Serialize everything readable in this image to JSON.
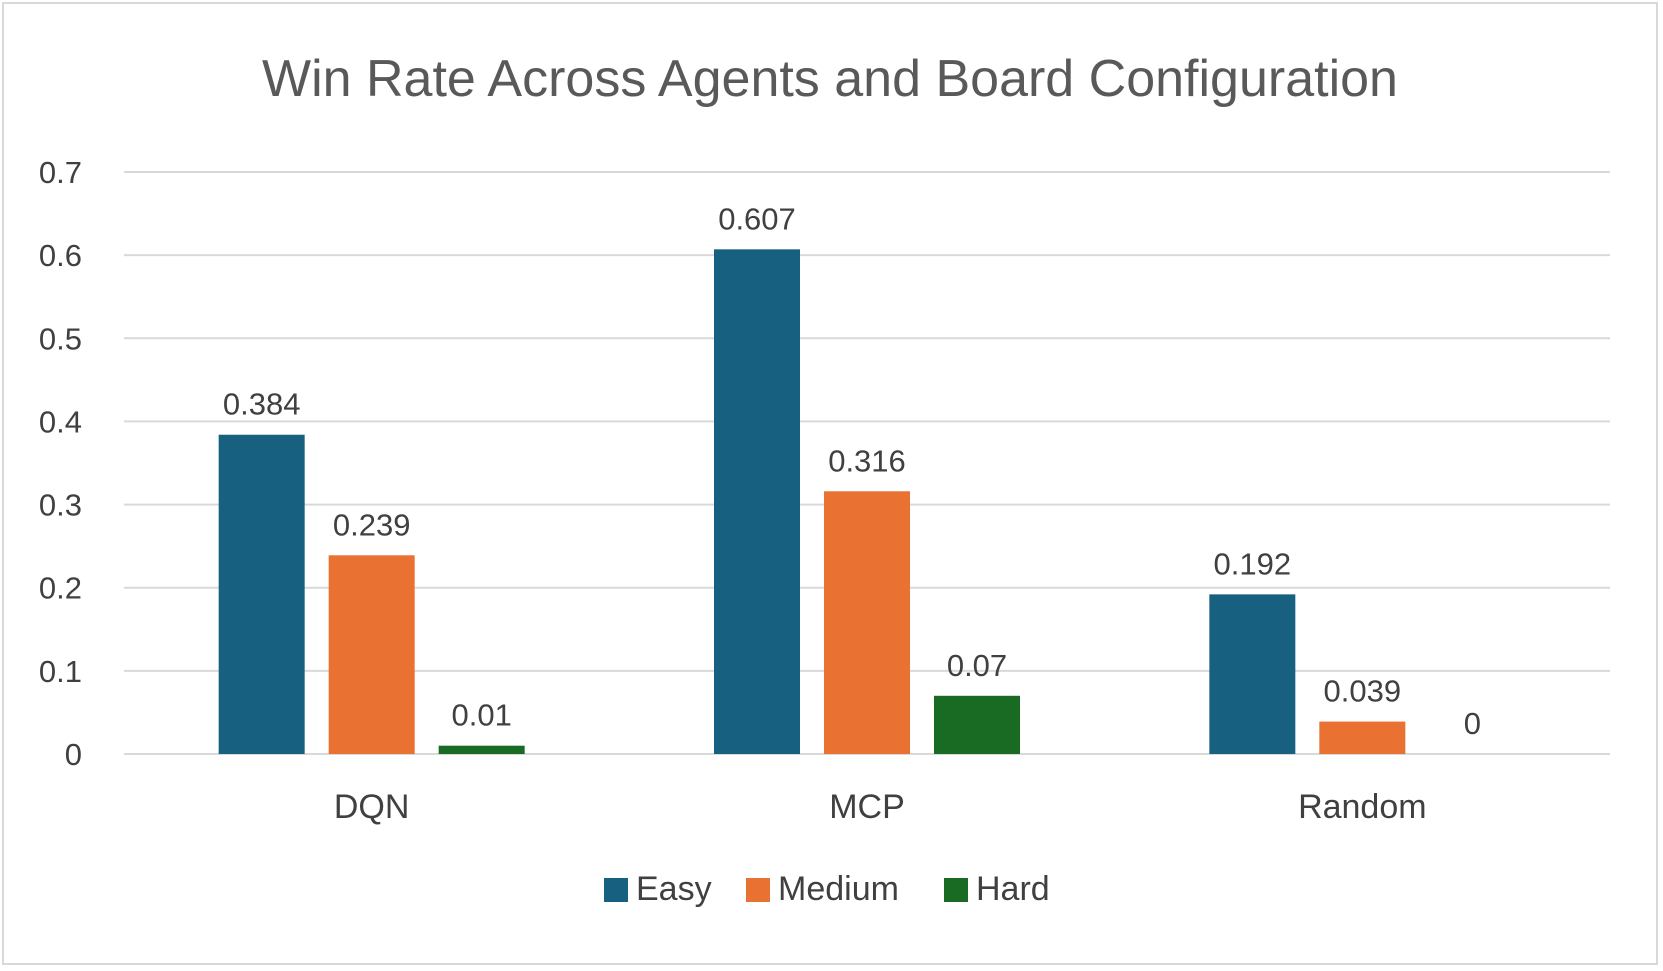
{
  "chart_data": {
    "type": "bar",
    "title": "Win Rate Across Agents and Board Configuration",
    "xlabel": "",
    "ylabel": "",
    "categories": [
      "DQN",
      "MCP",
      "Random"
    ],
    "series": [
      {
        "name": "Easy",
        "color": "#17607f",
        "values": [
          0.384,
          0.607,
          0.192
        ],
        "labels": [
          "0.384",
          "0.607",
          "0.192"
        ]
      },
      {
        "name": "Medium",
        "color": "#e97132",
        "values": [
          0.239,
          0.316,
          0.039
        ],
        "labels": [
          "0.239",
          "0.316",
          "0.039"
        ]
      },
      {
        "name": "Hard",
        "color": "#196b24",
        "values": [
          0.01,
          0.07,
          0
        ],
        "labels": [
          "0.01",
          "0.07",
          "0"
        ]
      }
    ],
    "ylim": [
      0,
      0.7
    ],
    "yticks": [
      "0",
      "0.1",
      "0.2",
      "0.3",
      "0.4",
      "0.5",
      "0.6",
      "0.7"
    ],
    "grid": true,
    "gridline_color": "#d9d9d9",
    "legend_position": "bottom"
  }
}
